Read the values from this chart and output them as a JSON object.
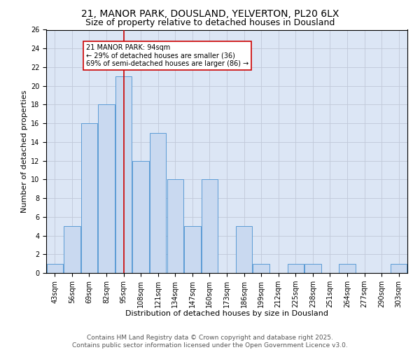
{
  "title1": "21, MANOR PARK, DOUSLAND, YELVERTON, PL20 6LX",
  "title2": "Size of property relative to detached houses in Dousland",
  "xlabel": "Distribution of detached houses by size in Dousland",
  "ylabel": "Number of detached properties",
  "categories": [
    "43sqm",
    "56sqm",
    "69sqm",
    "82sqm",
    "95sqm",
    "108sqm",
    "121sqm",
    "134sqm",
    "147sqm",
    "160sqm",
    "173sqm",
    "186sqm",
    "199sqm",
    "212sqm",
    "225sqm",
    "238sqm",
    "251sqm",
    "264sqm",
    "277sqm",
    "290sqm",
    "303sqm"
  ],
  "values": [
    1,
    5,
    16,
    18,
    21,
    12,
    15,
    10,
    5,
    10,
    0,
    5,
    1,
    0,
    1,
    1,
    0,
    1,
    0,
    0,
    1
  ],
  "bar_color": "#c9d9f0",
  "bar_edge_color": "#5b9bd5",
  "vline_x_index": 4,
  "vline_color": "#cc0000",
  "annotation_text": "21 MANOR PARK: 94sqm\n← 29% of detached houses are smaller (36)\n69% of semi-detached houses are larger (86) →",
  "annotation_box_color": "#ffffff",
  "annotation_box_edge": "#cc0000",
  "ylim": [
    0,
    26
  ],
  "yticks": [
    0,
    2,
    4,
    6,
    8,
    10,
    12,
    14,
    16,
    18,
    20,
    22,
    24,
    26
  ],
  "grid_color": "#c0c8d8",
  "background_color": "#dce6f5",
  "footer": "Contains HM Land Registry data © Crown copyright and database right 2025.\nContains public sector information licensed under the Open Government Licence v3.0.",
  "title_fontsize": 10,
  "subtitle_fontsize": 9,
  "axis_label_fontsize": 8,
  "tick_fontsize": 7,
  "footer_fontsize": 6.5,
  "annot_fontsize": 7
}
